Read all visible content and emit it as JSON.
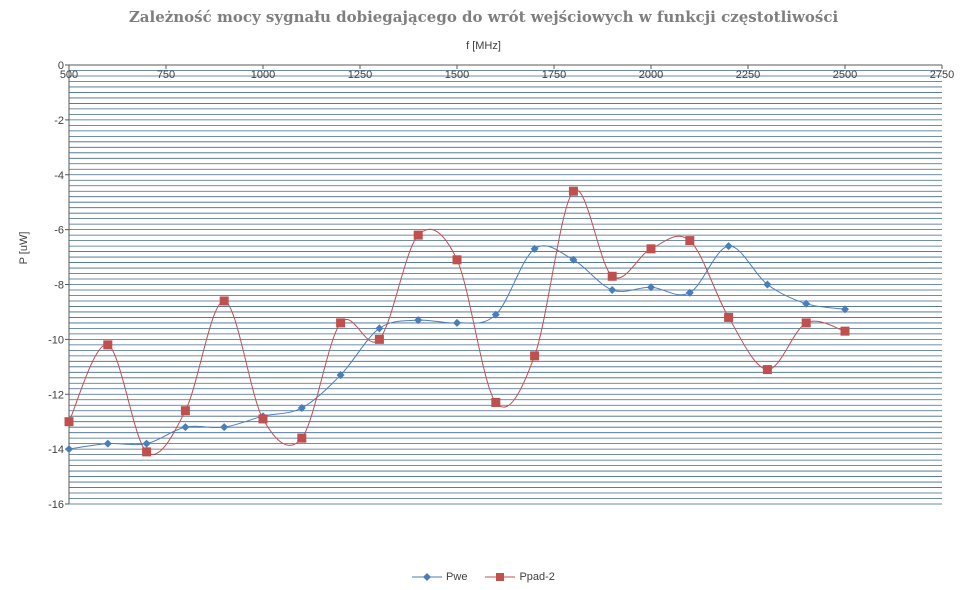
{
  "chart_data": {
    "type": "line",
    "title": "Zależność mocy sygnału dobiegającego do wrót wejściowych w funkcji częstotliwości",
    "xlabel": "f [MHz]",
    "ylabel": "P [uW]",
    "xlim": [
      500,
      2750
    ],
    "ylim": [
      -16,
      0
    ],
    "x_ticks": [
      500,
      750,
      1000,
      1250,
      1500,
      1750,
      2000,
      2250,
      2500,
      2750
    ],
    "y_ticks": [
      0,
      -2,
      -4,
      -6,
      -8,
      -10,
      -12,
      -14,
      -16
    ],
    "x_axis_position": "top",
    "grid": true,
    "smooth": true,
    "legend_position": "bottom",
    "series": [
      {
        "name": "Pwe",
        "color": "#4a7ebb",
        "marker": "diamond",
        "x": [
          500,
          600,
          700,
          800,
          900,
          1000,
          1100,
          1200,
          1300,
          1400,
          1500,
          1600,
          1700,
          1800,
          1900,
          2000,
          2100,
          2200,
          2300,
          2400,
          2500
        ],
        "y": [
          -14.0,
          -13.8,
          -13.8,
          -13.2,
          -13.2,
          -12.8,
          -12.5,
          -11.3,
          -9.6,
          -9.3,
          -9.4,
          -9.1,
          -6.7,
          -7.1,
          -8.2,
          -8.1,
          -8.3,
          -6.6,
          -8.0,
          -8.7,
          -8.9
        ]
      },
      {
        "name": "Ppad-2",
        "color": "#c0504d",
        "marker": "square",
        "x": [
          500,
          600,
          700,
          800,
          900,
          1000,
          1100,
          1200,
          1300,
          1400,
          1500,
          1600,
          1700,
          1800,
          1900,
          2000,
          2100,
          2200,
          2300,
          2400,
          2500
        ],
        "y": [
          -13.0,
          -10.2,
          -14.1,
          -12.6,
          -8.6,
          -12.9,
          -13.6,
          -9.4,
          -10.0,
          -6.2,
          -7.1,
          -12.3,
          -10.6,
          -4.6,
          -7.7,
          -6.7,
          -6.4,
          -9.2,
          -11.1,
          -9.4,
          -9.7
        ]
      }
    ]
  }
}
